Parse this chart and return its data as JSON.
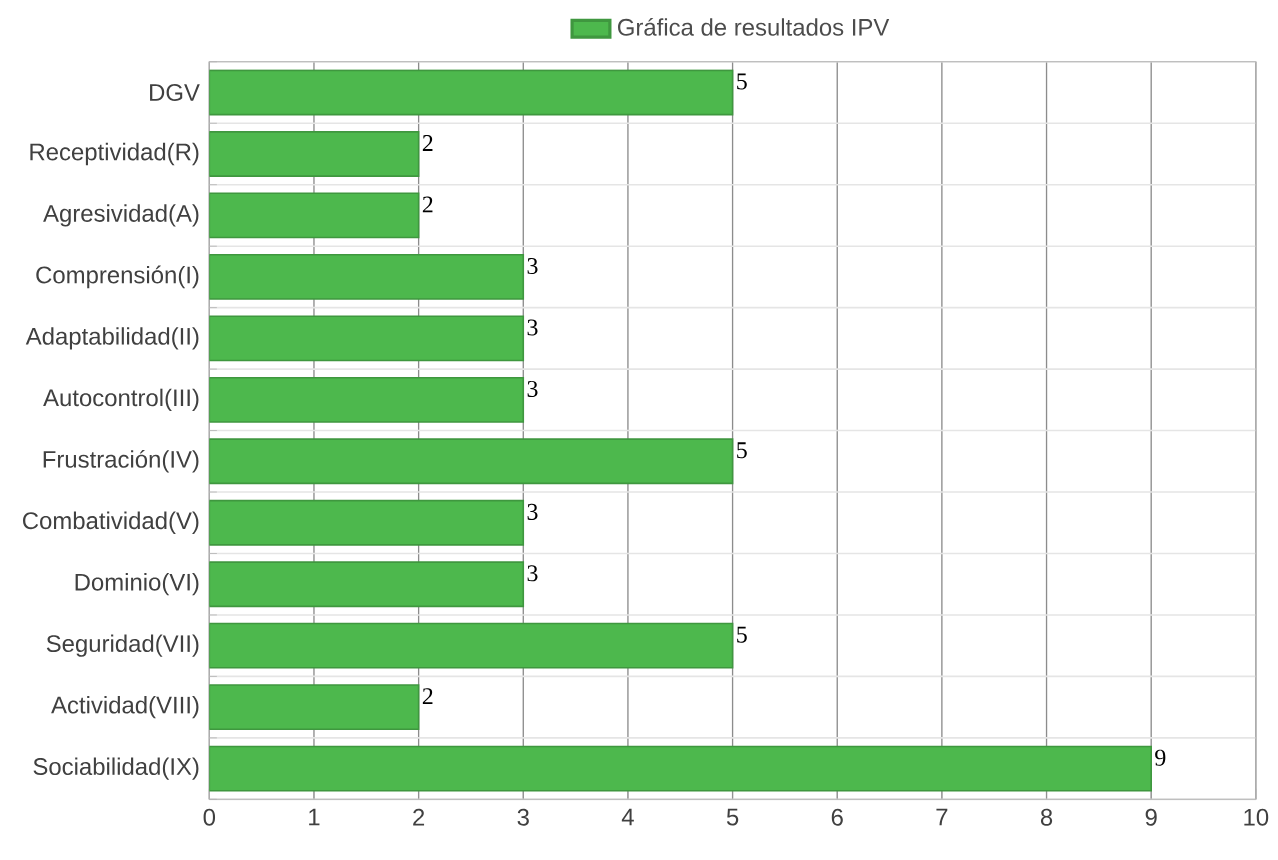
{
  "chart_data": {
    "type": "bar",
    "orientation": "horizontal",
    "categories": [
      "DGV",
      "Receptividad(R)",
      "Agresividad(A)",
      "Comprensión(I)",
      "Adaptabilidad(II)",
      "Autocontrol(III)",
      "Frustración(IV)",
      "Combatividad(V)",
      "Dominio(VI)",
      "Seguridad(VII)",
      "Actividad(VIII)",
      "Sociabilidad(IX)"
    ],
    "series": [
      {
        "name": "Gráfica de resultados IPV",
        "color": "#4db84d",
        "values": [
          5,
          2,
          2,
          3,
          3,
          3,
          5,
          3,
          3,
          5,
          2,
          9
        ]
      }
    ],
    "xlim": [
      0,
      10
    ],
    "xticks": [
      0,
      1,
      2,
      3,
      4,
      5,
      6,
      7,
      8,
      9,
      10
    ],
    "grid": true,
    "legend": "top",
    "data_labels": true
  }
}
